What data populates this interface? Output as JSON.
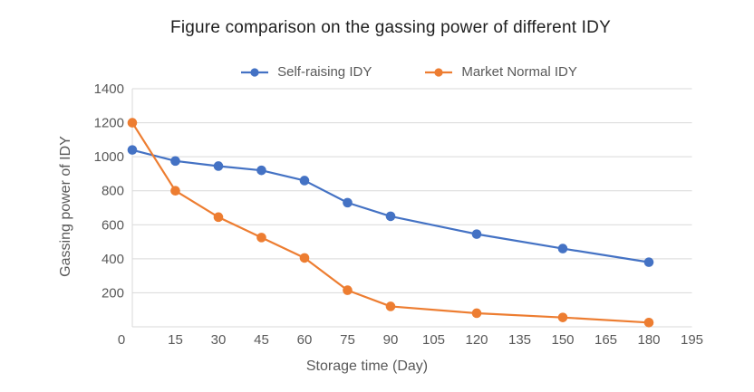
{
  "chart_data": {
    "type": "line",
    "title": "Figure comparison on the gassing power of different IDY",
    "xlabel": "Storage time (Day)",
    "ylabel": "Gassing power of IDY",
    "x": [
      0,
      15,
      30,
      45,
      60,
      75,
      90,
      120,
      150,
      180
    ],
    "series": [
      {
        "name": "Self-raising IDY",
        "color": "#4472C4",
        "values": [
          1040,
          975,
          945,
          920,
          860,
          730,
          650,
          545,
          460,
          380
        ]
      },
      {
        "name": "Market Normal IDY",
        "color": "#ED7D31",
        "values": [
          1200,
          800,
          645,
          525,
          405,
          215,
          120,
          80,
          55,
          25
        ]
      }
    ],
    "xticks": [
      0,
      15,
      30,
      45,
      60,
      75,
      90,
      105,
      120,
      135,
      150,
      165,
      180,
      195
    ],
    "yticks": [
      200,
      400,
      600,
      800,
      1000,
      1200,
      1400
    ],
    "xlim": [
      0,
      195
    ],
    "ylim": [
      0,
      1400
    ],
    "grid": "horizontal",
    "legend_position": "top",
    "marker": "circle",
    "colors": {
      "axis_text": "#595959",
      "gridline": "#D9D9D9",
      "title_text": "#1F1F1F",
      "background": "#FFFFFF"
    }
  }
}
